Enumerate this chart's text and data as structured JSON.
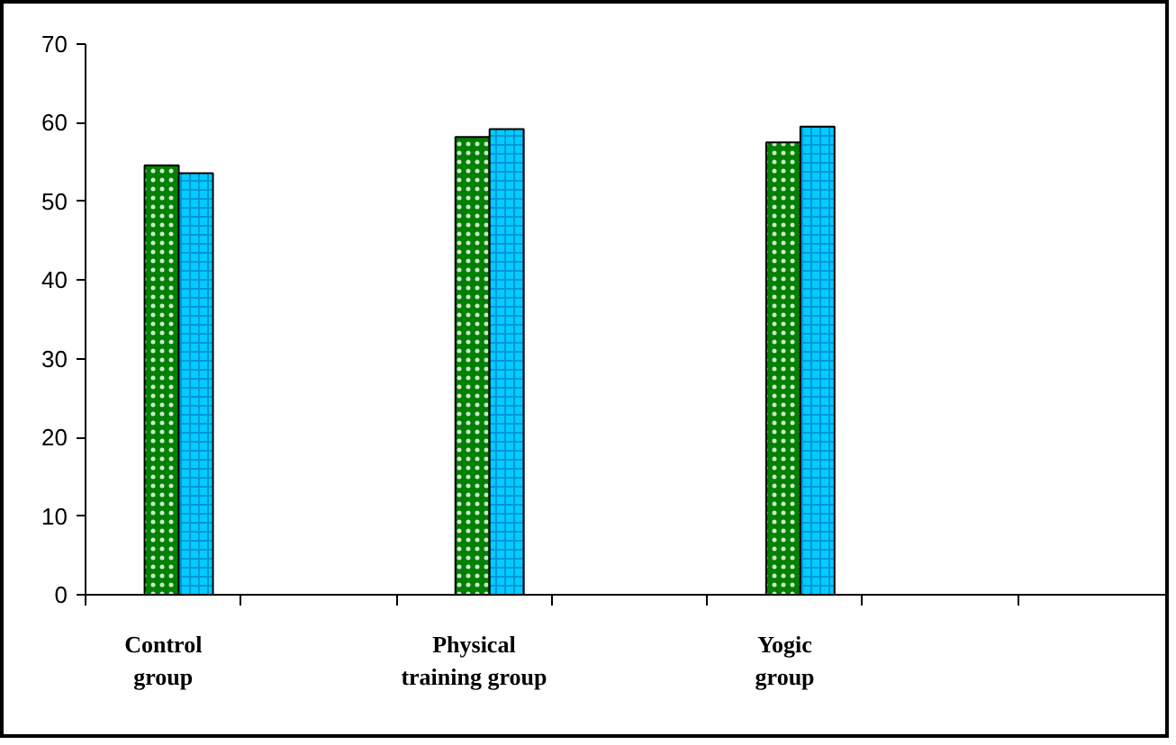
{
  "chart_data": {
    "type": "bar",
    "categories": [
      "Control group",
      null,
      "Physical training group",
      null,
      "Yogic group",
      null,
      null
    ],
    "series": [
      {
        "color": "#008000",
        "values": [
          54.6,
          null,
          58.2,
          null,
          57.5,
          null,
          null
        ]
      },
      {
        "color": "#00ccff",
        "values": [
          53.6,
          null,
          59.2,
          null,
          59.5,
          null,
          null
        ]
      }
    ],
    "ylim": [
      0,
      70
    ],
    "yticks": [
      0,
      10,
      20,
      30,
      40,
      50,
      60,
      70
    ],
    "grid": false
  }
}
